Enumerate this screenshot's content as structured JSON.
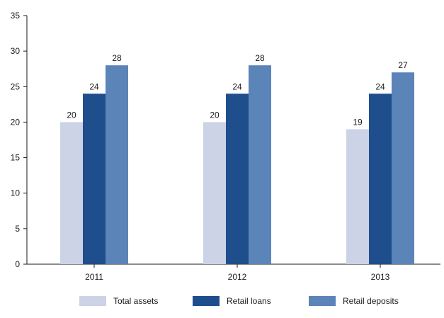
{
  "chart_data": {
    "type": "bar",
    "title": "",
    "xlabel": "",
    "ylabel": "",
    "categories": [
      "2011",
      "2012",
      "2013"
    ],
    "ylim": [
      0,
      35
    ],
    "yticks": [
      0,
      5,
      10,
      15,
      20,
      25,
      30,
      35
    ],
    "grid": false,
    "legend_position": "bottom",
    "series": [
      {
        "name": "Total assets",
        "values": [
          20,
          20,
          19
        ],
        "color": "#cdd3e6"
      },
      {
        "name": "Retail loans",
        "values": [
          24,
          24,
          24
        ],
        "color": "#1f4e8c"
      },
      {
        "name": "Retail deposits",
        "values": [
          28,
          28,
          27
        ],
        "color": "#5b84b8"
      }
    ]
  }
}
